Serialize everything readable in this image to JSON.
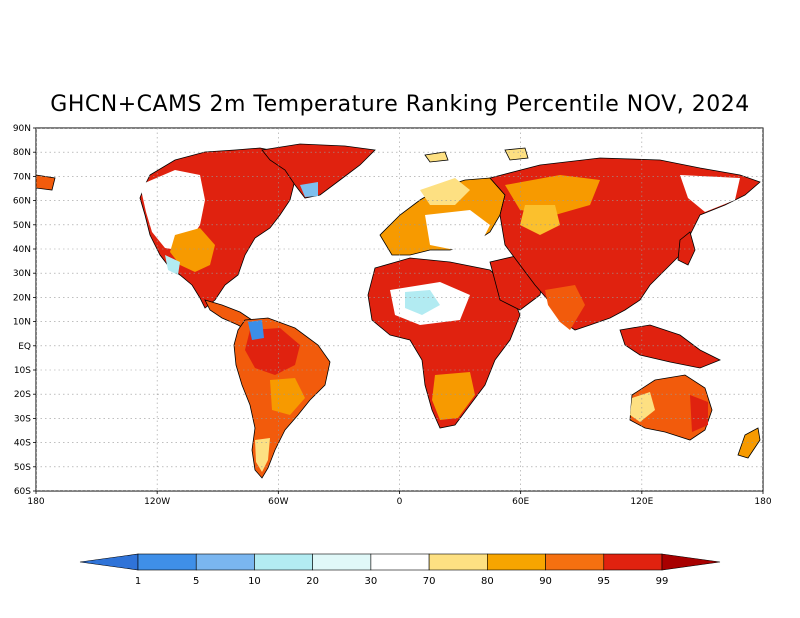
{
  "title": "GHCN+CAMS 2m Temperature Ranking Percentile NOV, 2024",
  "map": {
    "lat_labels": [
      "90N",
      "80N",
      "70N",
      "60N",
      "50N",
      "40N",
      "30N",
      "20N",
      "10N",
      "EQ",
      "10S",
      "20S",
      "30S",
      "40S",
      "50S",
      "60S"
    ],
    "lon_labels": [
      "180",
      "120W",
      "60W",
      "0",
      "60E",
      "120E",
      "180"
    ],
    "colors": {
      "ocean": "#ffffff",
      "coast": "#000000",
      "grid": "#9a9a9a",
      "p99": "#e0220f",
      "p95": "#f25b0c",
      "p90": "#f79a00",
      "p80": "#fbc02d",
      "p70": "#fde082",
      "neutral": "#ffffff",
      "p20": "#e0f7f7",
      "p10": "#b2ebf2",
      "p5": "#7ec0ee",
      "p1": "#3b8ee8"
    }
  },
  "colorbar": {
    "labels": [
      "1",
      "5",
      "10",
      "20",
      "30",
      "70",
      "80",
      "90",
      "95",
      "99"
    ],
    "colors": [
      "#2f73d8",
      "#3f8fe8",
      "#7ab6f0",
      "#b3ecf2",
      "#e0f8f8",
      "#ffffff",
      "#fde082",
      "#f7a500",
      "#f57010",
      "#e0220f",
      "#a80000"
    ]
  }
}
